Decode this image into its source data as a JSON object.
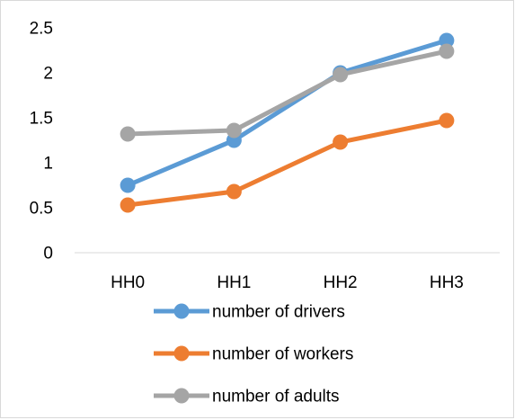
{
  "chart_data": {
    "type": "line",
    "title": "",
    "xlabel": "",
    "ylabel": "",
    "categories": [
      "HH0",
      "HH1",
      "HH2",
      "HH3"
    ],
    "ylim": [
      0,
      2.5
    ],
    "yticks": [
      "0",
      "0.5",
      "1",
      "1.5",
      "2",
      "2.5"
    ],
    "grid": false,
    "legend_position": "bottom",
    "series": [
      {
        "name": "number of drivers",
        "color": "#5B9BD5",
        "values": [
          0.75,
          1.25,
          2.0,
          2.36
        ]
      },
      {
        "name": "number of workers",
        "color": "#ED7D31",
        "values": [
          0.53,
          0.68,
          1.23,
          1.47
        ]
      },
      {
        "name": "number of adults",
        "color": "#A5A5A5",
        "values": [
          1.32,
          1.36,
          1.98,
          2.24
        ]
      }
    ]
  }
}
